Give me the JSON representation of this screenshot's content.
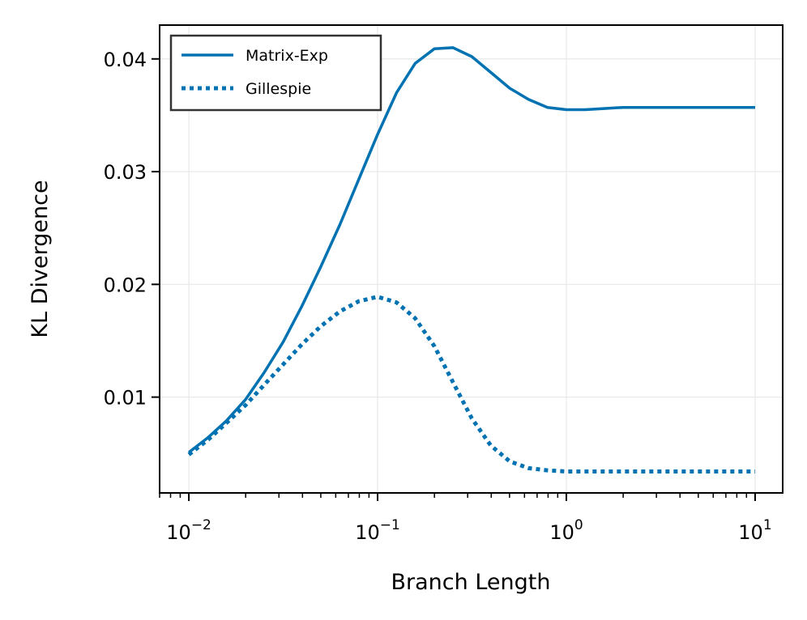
{
  "chart_data": {
    "type": "line",
    "xlabel": "Branch Length",
    "ylabel": "KL Divergence",
    "xscale": "log",
    "xlim": [
      0.007,
      14
    ],
    "ylim": [
      0.0015,
      0.043
    ],
    "x_ticks": [
      {
        "base": "10",
        "exp": "−2",
        "value": 0.01
      },
      {
        "base": "10",
        "exp": "−1",
        "value": 0.1
      },
      {
        "base": "10",
        "exp": "0",
        "value": 1
      },
      {
        "base": "10",
        "exp": "1",
        "value": 10
      }
    ],
    "y_ticks": [
      {
        "label": "0.01",
        "value": 0.01
      },
      {
        "label": "0.02",
        "value": 0.02
      },
      {
        "label": "0.03",
        "value": 0.03
      },
      {
        "label": "0.04",
        "value": 0.04
      }
    ],
    "grid": true,
    "legend_position": "top-left",
    "series": [
      {
        "name": "Matrix-Exp",
        "style": "solid",
        "color": "#0072B2",
        "x": [
          0.01,
          0.0126,
          0.0158,
          0.02,
          0.0251,
          0.0316,
          0.0398,
          0.0501,
          0.0631,
          0.0794,
          0.1,
          0.126,
          0.158,
          0.2,
          0.251,
          0.316,
          0.398,
          0.501,
          0.631,
          0.794,
          1.0,
          1.26,
          1.58,
          2.0,
          2.51,
          3.16,
          3.98,
          5.01,
          6.31,
          7.94,
          10.0
        ],
        "y": [
          0.0051,
          0.0064,
          0.0079,
          0.0098,
          0.0122,
          0.0149,
          0.0181,
          0.0216,
          0.0253,
          0.0293,
          0.0333,
          0.037,
          0.0396,
          0.0409,
          0.041,
          0.0402,
          0.0388,
          0.0374,
          0.0364,
          0.0357,
          0.0355,
          0.0355,
          0.0356,
          0.0357,
          0.0357,
          0.0357,
          0.0357,
          0.0357,
          0.0357,
          0.0357,
          0.0357
        ]
      },
      {
        "name": "Gillespie",
        "style": "dotted",
        "color": "#0072B2",
        "x": [
          0.01,
          0.0126,
          0.0158,
          0.02,
          0.0251,
          0.0316,
          0.0398,
          0.0501,
          0.0631,
          0.0794,
          0.1,
          0.126,
          0.158,
          0.2,
          0.251,
          0.316,
          0.398,
          0.501,
          0.631,
          0.794,
          1.0,
          1.26,
          1.58,
          2.0,
          2.51,
          3.16,
          3.98,
          5.01,
          6.31,
          7.94,
          10.0
        ],
        "y": [
          0.0049,
          0.0062,
          0.0077,
          0.0093,
          0.0111,
          0.0129,
          0.0147,
          0.0163,
          0.0176,
          0.0185,
          0.0189,
          0.0184,
          0.017,
          0.0145,
          0.0113,
          0.0081,
          0.0057,
          0.0043,
          0.0037,
          0.0035,
          0.0034,
          0.0034,
          0.0034,
          0.0034,
          0.0034,
          0.0034,
          0.0034,
          0.0034,
          0.0034,
          0.0034,
          0.0034
        ]
      }
    ]
  }
}
